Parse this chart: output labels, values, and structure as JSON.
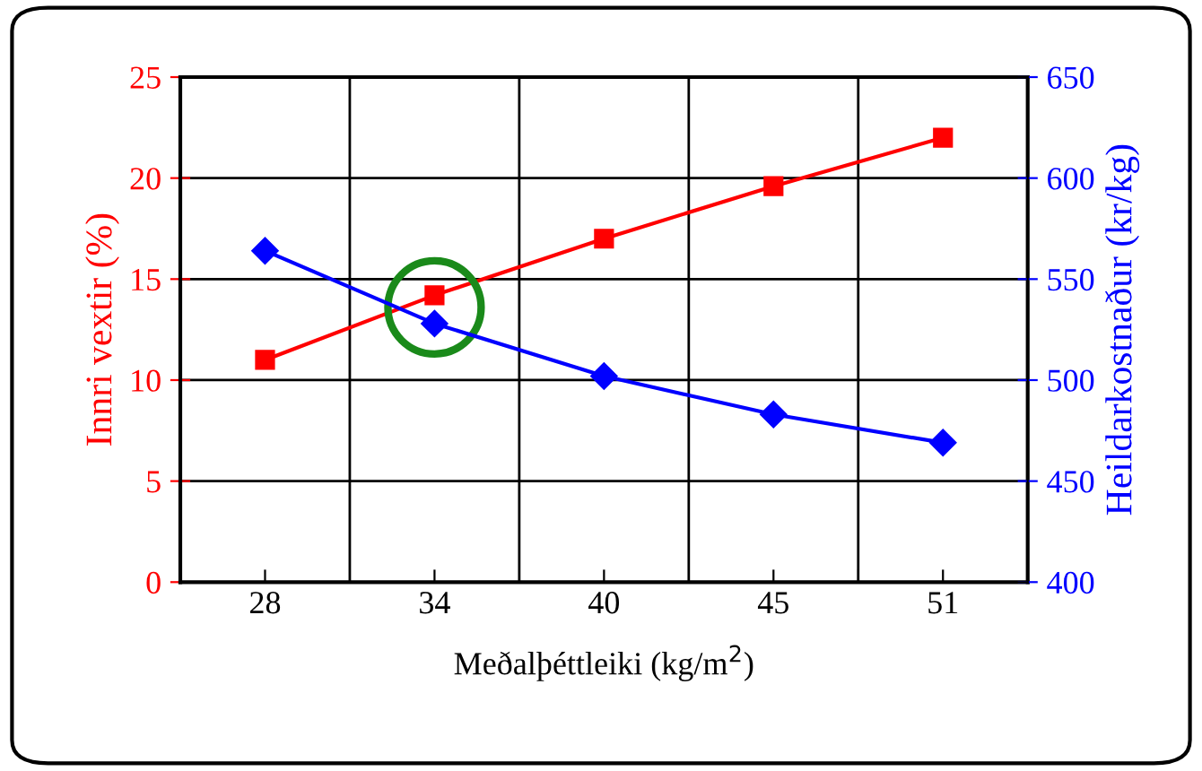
{
  "chart_data": {
    "type": "line",
    "xlabel": "Meðalþéttleiki (kg/m$^{2}$)",
    "ylabel": "Innri vextir (%)",
    "y2label": "Heildarkostnaður (kr/kg)",
    "categories": [
      "28",
      "34",
      "40",
      "45",
      "51"
    ],
    "series": [
      {
        "color": "#ff0000",
        "marker": "square",
        "values": [
          11.0,
          14.2,
          17.0,
          19.6,
          22.0
        ]
      },
      {
        "color": "#0000ff",
        "marker": "diamond",
        "axis": "y2",
        "values": [
          564,
          528,
          502,
          483,
          469
        ]
      }
    ],
    "ylim": [
      0,
      25
    ],
    "yticks": [
      0,
      5,
      10,
      15,
      20,
      25
    ],
    "y2lim": [
      400,
      650
    ],
    "y2ticks": [
      400,
      450,
      500,
      550,
      600,
      650
    ],
    "grid": true,
    "line_style": "solid"
  }
}
